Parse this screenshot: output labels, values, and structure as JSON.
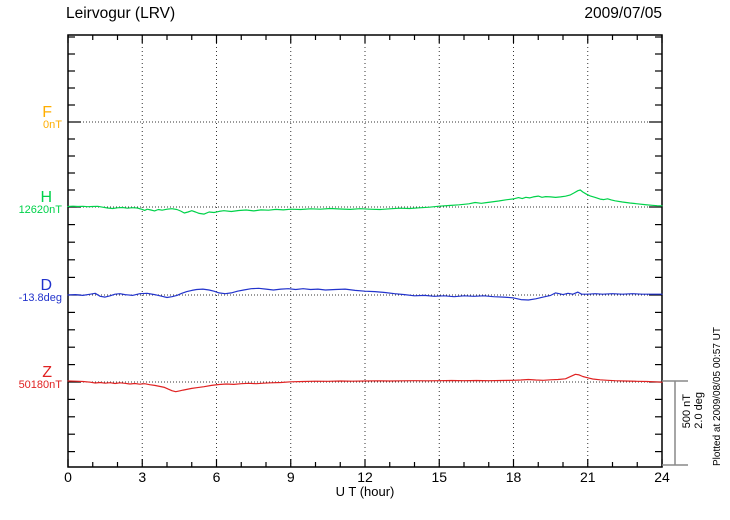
{
  "header": {
    "station_title": "Leirvogur (LRV)",
    "date": "2009/07/05"
  },
  "footer": {
    "xaxis_label": "U T (hour)",
    "plotted_at": "Plotted at 2009/08/05 00:57 UT"
  },
  "scale_bar": {
    "label_nt": "500 nT",
    "label_deg": "2.0 deg",
    "color": "#888888"
  },
  "colors": {
    "axis": "#000000",
    "grid": "#333333",
    "channel_F": "#FFAE00",
    "channel_H": "#00D24A",
    "channel_D": "#2233CC",
    "channel_Z": "#E02222"
  },
  "channels": [
    {
      "id": "F",
      "label": "F",
      "value_label": "0nT",
      "color": "#FFAE00",
      "unit": "nT"
    },
    {
      "id": "H",
      "label": "H",
      "value_label": "12620nT",
      "color": "#00D24A",
      "unit": "nT"
    },
    {
      "id": "D",
      "label": "D",
      "value_label": "-13.8deg",
      "color": "#2233CC",
      "unit": "deg"
    },
    {
      "id": "Z",
      "label": "Z",
      "value_label": "50180nT",
      "color": "#E02222",
      "unit": "nT"
    }
  ],
  "chart_data": {
    "type": "line",
    "title": "Leirvogur (LRV) magnetogram",
    "date": "2009/07/05",
    "xlabel": "U T (hour)",
    "x_range": [
      0,
      24
    ],
    "x_major_ticks": [
      0,
      3,
      6,
      9,
      12,
      15,
      18,
      21,
      24
    ],
    "x_minor_step_hours": 1,
    "grid": "dotted vertical at 3h intervals, dotted horizontal at each channel baseline",
    "scale": {
      "nT_per_division": 500,
      "deg_per_division": 2.0
    },
    "series": [
      {
        "name": "F",
        "unit": "nT",
        "base_value": 0,
        "color": "#FFAE00",
        "note": "no trace plotted (baseline only)",
        "points": []
      },
      {
        "name": "H",
        "unit": "nT",
        "base_value": 12620,
        "color": "#00D24A",
        "points": [
          [
            0,
            3
          ],
          [
            0.2,
            5
          ],
          [
            0.4,
            3
          ],
          [
            0.6,
            4
          ],
          [
            0.8,
            2
          ],
          [
            1,
            3
          ],
          [
            1.2,
            4
          ],
          [
            1.4,
            -1
          ],
          [
            1.6,
            -6
          ],
          [
            1.8,
            -9
          ],
          [
            2,
            -5
          ],
          [
            2.2,
            -3
          ],
          [
            2.4,
            -7
          ],
          [
            2.6,
            -4
          ],
          [
            2.8,
            -6
          ],
          [
            3,
            -14
          ],
          [
            3.1,
            -20
          ],
          [
            3.2,
            -13
          ],
          [
            3.35,
            -18
          ],
          [
            3.5,
            -23
          ],
          [
            3.65,
            -15
          ],
          [
            3.8,
            -19
          ],
          [
            4,
            -13
          ],
          [
            4.2,
            -10
          ],
          [
            4.4,
            -15
          ],
          [
            4.55,
            -24
          ],
          [
            4.7,
            -36
          ],
          [
            4.85,
            -30
          ],
          [
            5,
            -22
          ],
          [
            5.15,
            -30
          ],
          [
            5.3,
            -38
          ],
          [
            5.5,
            -42
          ],
          [
            5.7,
            -30
          ],
          [
            5.9,
            -33
          ],
          [
            6.1,
            -26
          ],
          [
            6.3,
            -22
          ],
          [
            6.6,
            -27
          ],
          [
            6.9,
            -21
          ],
          [
            7.2,
            -18
          ],
          [
            7.5,
            -23
          ],
          [
            7.8,
            -17
          ],
          [
            8.1,
            -19
          ],
          [
            8.4,
            -14
          ],
          [
            8.7,
            -17
          ],
          [
            9,
            -13
          ],
          [
            9.4,
            -15
          ],
          [
            9.8,
            -11
          ],
          [
            10.2,
            -13
          ],
          [
            10.6,
            -9
          ],
          [
            11,
            -12
          ],
          [
            11.4,
            -14
          ],
          [
            11.8,
            -10
          ],
          [
            12.2,
            -13
          ],
          [
            12.6,
            -15
          ],
          [
            13,
            -11
          ],
          [
            13.4,
            -7
          ],
          [
            13.8,
            -9
          ],
          [
            14.2,
            -5
          ],
          [
            14.6,
            -1
          ],
          [
            15,
            5
          ],
          [
            15.4,
            9
          ],
          [
            15.8,
            13
          ],
          [
            16.2,
            19
          ],
          [
            16.45,
            27
          ],
          [
            16.7,
            22
          ],
          [
            16.9,
            26
          ],
          [
            17.1,
            30
          ],
          [
            17.4,
            36
          ],
          [
            17.7,
            43
          ],
          [
            18,
            48
          ],
          [
            18.2,
            56
          ],
          [
            18.35,
            50
          ],
          [
            18.5,
            58
          ],
          [
            18.65,
            54
          ],
          [
            18.8,
            60
          ],
          [
            19,
            65
          ],
          [
            19.15,
            58
          ],
          [
            19.3,
            62
          ],
          [
            19.5,
            60
          ],
          [
            19.7,
            57
          ],
          [
            19.9,
            60
          ],
          [
            20.1,
            64
          ],
          [
            20.3,
            72
          ],
          [
            20.45,
            84
          ],
          [
            20.6,
            97
          ],
          [
            20.7,
            101
          ],
          [
            20.8,
            89
          ],
          [
            20.95,
            76
          ],
          [
            21.1,
            66
          ],
          [
            21.3,
            57
          ],
          [
            21.5,
            47
          ],
          [
            21.65,
            44
          ],
          [
            21.8,
            49
          ],
          [
            21.95,
            42
          ],
          [
            22.1,
            37
          ],
          [
            22.4,
            30
          ],
          [
            22.7,
            24
          ],
          [
            23,
            19
          ],
          [
            23.3,
            14
          ],
          [
            23.6,
            10
          ],
          [
            23.8,
            8
          ],
          [
            24,
            7
          ]
        ]
      },
      {
        "name": "D",
        "unit": "deg",
        "base_value": -13.8,
        "color": "#2233CC",
        "points": [
          [
            0,
            0
          ],
          [
            0.3,
            0.01
          ],
          [
            0.6,
            -0.01
          ],
          [
            0.9,
            0.02
          ],
          [
            1.1,
            0.04
          ],
          [
            1.3,
            -0.03
          ],
          [
            1.5,
            -0.05
          ],
          [
            1.7,
            -0.02
          ],
          [
            1.9,
            0.02
          ],
          [
            2.1,
            0.03
          ],
          [
            2.3,
            0.01
          ],
          [
            2.6,
            -0.01
          ],
          [
            2.9,
            0.03
          ],
          [
            3.2,
            0.04
          ],
          [
            3.5,
            0.01
          ],
          [
            3.8,
            -0.03
          ],
          [
            4,
            -0.06
          ],
          [
            4.2,
            -0.04
          ],
          [
            4.4,
            -0.01
          ],
          [
            4.6,
            0.04
          ],
          [
            4.8,
            0.08
          ],
          [
            5,
            0.11
          ],
          [
            5.2,
            0.13
          ],
          [
            5.45,
            0.14
          ],
          [
            5.7,
            0.12
          ],
          [
            5.9,
            0.09
          ],
          [
            6.1,
            0.05
          ],
          [
            6.35,
            0.03
          ],
          [
            6.6,
            0.05
          ],
          [
            6.85,
            0.09
          ],
          [
            7.1,
            0.12
          ],
          [
            7.4,
            0.15
          ],
          [
            7.7,
            0.16
          ],
          [
            8,
            0.14
          ],
          [
            8.3,
            0.12
          ],
          [
            8.6,
            0.14
          ],
          [
            8.9,
            0.15
          ],
          [
            9.2,
            0.13
          ],
          [
            9.5,
            0.15
          ],
          [
            9.8,
            0.13
          ],
          [
            10.1,
            0.14
          ],
          [
            10.4,
            0.12
          ],
          [
            10.8,
            0.13
          ],
          [
            11.2,
            0.14
          ],
          [
            11.6,
            0.11
          ],
          [
            12,
            0.09
          ],
          [
            12.4,
            0.08
          ],
          [
            12.8,
            0.06
          ],
          [
            13.2,
            0.03
          ],
          [
            13.6,
            0.01
          ],
          [
            14,
            -0.02
          ],
          [
            14.4,
            -0.01
          ],
          [
            14.8,
            -0.03
          ],
          [
            15.2,
            -0.02
          ],
          [
            15.6,
            -0.04
          ],
          [
            16,
            -0.02
          ],
          [
            16.4,
            -0.03
          ],
          [
            16.8,
            -0.02
          ],
          [
            17.2,
            -0.04
          ],
          [
            17.6,
            -0.05
          ],
          [
            18,
            -0.07
          ],
          [
            18.3,
            -0.11
          ],
          [
            18.6,
            -0.12
          ],
          [
            18.9,
            -0.09
          ],
          [
            19.2,
            -0.05
          ],
          [
            19.5,
            -0.01
          ],
          [
            19.7,
            0.05
          ],
          [
            19.85,
            0.03
          ],
          [
            20,
            0.01
          ],
          [
            20.2,
            0.04
          ],
          [
            20.4,
            0.02
          ],
          [
            20.6,
            0.07
          ],
          [
            20.75,
            0.02
          ],
          [
            21,
            0.02
          ],
          [
            21.3,
            0.03
          ],
          [
            21.6,
            0.02
          ],
          [
            22,
            0.03
          ],
          [
            22.4,
            0.02
          ],
          [
            22.8,
            0.03
          ],
          [
            23.2,
            0.02
          ],
          [
            23.6,
            0.02
          ],
          [
            24,
            0.02
          ]
        ]
      },
      {
        "name": "Z",
        "unit": "nT",
        "base_value": 50180,
        "color": "#E02222",
        "points": [
          [
            0,
            6
          ],
          [
            0.3,
            5
          ],
          [
            0.6,
            3
          ],
          [
            0.9,
            -1
          ],
          [
            1.1,
            -6
          ],
          [
            1.3,
            -3
          ],
          [
            1.5,
            -7
          ],
          [
            1.7,
            -4
          ],
          [
            1.9,
            -9
          ],
          [
            2.1,
            -5
          ],
          [
            2.3,
            -8
          ],
          [
            2.5,
            -12
          ],
          [
            2.7,
            -9
          ],
          [
            2.9,
            -13
          ],
          [
            3.1,
            -10
          ],
          [
            3.3,
            -16
          ],
          [
            3.5,
            -20
          ],
          [
            3.7,
            -26
          ],
          [
            3.9,
            -32
          ],
          [
            4.05,
            -42
          ],
          [
            4.2,
            -52
          ],
          [
            4.35,
            -58
          ],
          [
            4.5,
            -53
          ],
          [
            4.65,
            -48
          ],
          [
            4.8,
            -44
          ],
          [
            5,
            -38
          ],
          [
            5.2,
            -34
          ],
          [
            5.5,
            -28
          ],
          [
            5.8,
            -20
          ],
          [
            6.1,
            -15
          ],
          [
            6.4,
            -12
          ],
          [
            6.7,
            -14
          ],
          [
            7,
            -10
          ],
          [
            7.3,
            -8
          ],
          [
            7.6,
            -10
          ],
          [
            7.9,
            -7
          ],
          [
            8.2,
            -5
          ],
          [
            8.6,
            -3
          ],
          [
            9,
            1
          ],
          [
            9.5,
            3
          ],
          [
            10,
            5
          ],
          [
            10.5,
            4
          ],
          [
            11,
            6
          ],
          [
            11.5,
            5
          ],
          [
            12,
            6
          ],
          [
            12.5,
            7
          ],
          [
            13,
            6
          ],
          [
            13.5,
            7
          ],
          [
            14,
            8
          ],
          [
            14.5,
            7
          ],
          [
            15,
            8
          ],
          [
            15.5,
            9
          ],
          [
            16,
            8
          ],
          [
            16.5,
            9
          ],
          [
            17,
            8
          ],
          [
            17.5,
            9
          ],
          [
            18,
            10
          ],
          [
            18.3,
            12
          ],
          [
            18.6,
            15
          ],
          [
            18.9,
            12
          ],
          [
            19.2,
            10
          ],
          [
            19.5,
            13
          ],
          [
            19.8,
            15
          ],
          [
            20.1,
            19
          ],
          [
            20.3,
            32
          ],
          [
            20.5,
            46
          ],
          [
            20.65,
            42
          ],
          [
            20.8,
            33
          ],
          [
            21,
            25
          ],
          [
            21.2,
            18
          ],
          [
            21.5,
            13
          ],
          [
            21.8,
            10
          ],
          [
            22.1,
            8
          ],
          [
            22.5,
            6
          ],
          [
            23,
            4
          ],
          [
            23.4,
            3
          ],
          [
            23.7,
            1
          ],
          [
            24,
            -1
          ]
        ]
      }
    ]
  }
}
